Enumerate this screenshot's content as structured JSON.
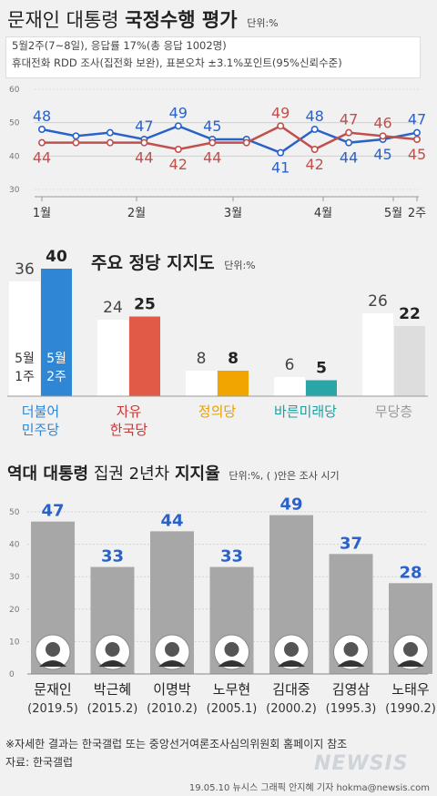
{
  "header": {
    "title_a": "문재인 대통령",
    "title_b": "국정수행 평가",
    "unit": "단위:%",
    "info1": "5월2주(7~8일), 응답률 17%(총 응답 1002명)",
    "info2": "휴대전화 RDD 조사(집전화 보완), 표본오차 ±3.1%포인트(95%신뢰수준)"
  },
  "chart1": {
    "type": "line",
    "y_ticks": [
      "60",
      "50",
      "40",
      "30"
    ],
    "ylim": [
      30,
      60
    ],
    "x_labels": [
      "1월",
      "2월",
      "3월",
      "4월",
      "5월",
      "2주"
    ],
    "series": [
      {
        "color": "#2a62c9",
        "values": [
          48,
          46,
          47,
          45,
          49,
          45,
          45,
          41,
          48,
          44,
          45,
          47
        ]
      },
      {
        "color": "#c0504d",
        "values": [
          44,
          44,
          44,
          44,
          42,
          44,
          44,
          49,
          42,
          47,
          46,
          45
        ]
      }
    ],
    "data_labels_a": [
      "48",
      "47",
      "49",
      "45",
      "41",
      "48",
      "44",
      "45",
      "47"
    ],
    "data_labels_b": [
      "44",
      "44",
      "42",
      "44",
      "49",
      "42",
      "47",
      "46",
      "45"
    ]
  },
  "chart2": {
    "type": "bar",
    "title": "주요 정당 지지도",
    "unit": "단위:%",
    "legend_a": [
      "5월",
      "1주"
    ],
    "legend_b": [
      "5월",
      "2주"
    ],
    "categories": [
      "더불어\n민주당",
      "자유\n한국당",
      "정의당",
      "바른미래당",
      "무당층"
    ],
    "cat_lines": [
      [
        "더불어",
        "민주당"
      ],
      [
        "자유",
        "한국당"
      ],
      [
        "정의당"
      ],
      [
        "바른미래당"
      ],
      [
        "무당층"
      ]
    ],
    "series": [
      {
        "name": "5월 1주",
        "values": [
          36,
          24,
          8,
          6,
          26
        ]
      },
      {
        "name": "5월 2주",
        "values": [
          40,
          25,
          8,
          5,
          22
        ]
      }
    ],
    "colors": [
      "#2e86d4",
      "#e05a47",
      "#f0a500",
      "#2aa6a8",
      "#dddddd"
    ],
    "label_colors": [
      "#2e86d4",
      "#cc3333",
      "#e8a000",
      "#1f9ea0",
      "#999999"
    ]
  },
  "chart3": {
    "type": "bar",
    "title_a": "역대 대통령",
    "title_b": "집권 2년차",
    "title_c": "지지율",
    "unit": "단위:%, ( )안은 조사 시기",
    "y_ticks": [
      "50",
      "40",
      "30",
      "20",
      "10",
      "0"
    ],
    "ylim": [
      0,
      50
    ],
    "names": [
      "문재인",
      "박근혜",
      "이명박",
      "노무현",
      "김대중",
      "김영삼",
      "노태우"
    ],
    "dates": [
      "(2019.5)",
      "(2015.2)",
      "(2010.2)",
      "(2005.1)",
      "(2000.2)",
      "(1995.3)",
      "(1990.2)"
    ],
    "values": [
      47,
      33,
      44,
      33,
      49,
      37,
      28
    ],
    "value_labels": [
      "47",
      "33",
      "44",
      "33",
      "49",
      "37",
      "28"
    ]
  },
  "footer": {
    "note": "※자세한 결과는 한국갤럽 또는 중앙선거여론조사심의위원회 홈페이지 참조",
    "source": "자료: 한국갤럽",
    "credit": "19.05.10 뉴시스 그래픽 안지혜 기자 hokma@newsis.com",
    "logo": "NEWSIS"
  }
}
